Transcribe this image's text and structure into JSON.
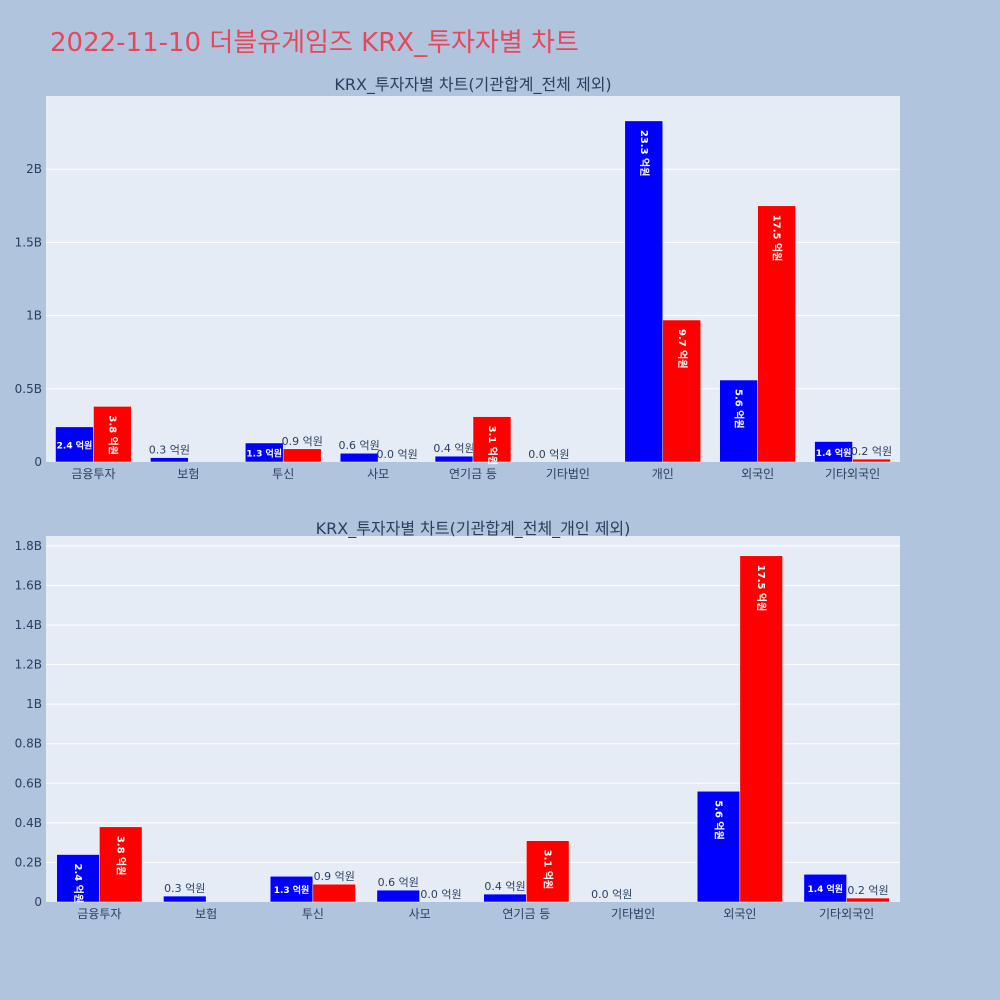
{
  "title": "2022-11-10 더블유게임즈 KRX_투자자별 차트",
  "colors": {
    "series1": "#0000ff",
    "series2": "#ff0000",
    "plot_bg": "#e5ecf6",
    "page_bg": "#b0c4de",
    "title": "#e8475a"
  },
  "chart_data": [
    {
      "type": "bar",
      "title": "KRX_투자자별 차트(기관합계_전체 제외)",
      "categories": [
        "금융투자",
        "보험",
        "투신",
        "사모",
        "연기금 등",
        "기타법인",
        "개인",
        "외국인",
        "기타외국인"
      ],
      "ylim": [
        0,
        2.5
      ],
      "yticks": [
        0,
        0.5,
        1,
        1.5,
        2
      ],
      "ytick_labels": [
        "0",
        "0.5B",
        "1B",
        "1.5B",
        "2B"
      ],
      "grid": true,
      "series": [
        {
          "values": [
            0.24,
            0.03,
            0.13,
            0.06,
            0.04,
            0.0,
            2.33,
            0.56,
            0.14
          ],
          "labels": [
            "2.4 억원",
            "0.3 억원",
            "1.3 억원",
            "0.6 억원",
            "0.4 억원",
            "0.0 억원",
            "23.3 억원",
            "5.6 억원",
            "1.4 억원"
          ]
        },
        {
          "values": [
            0.38,
            0.0,
            0.09,
            0.0,
            0.31,
            0.0,
            0.97,
            1.75,
            0.02
          ],
          "labels": [
            "3.8 억원",
            "",
            "0.9 억원",
            "0.0 억원",
            "3.1 억원",
            "",
            "9.7 억원",
            "17.5 억원",
            "0.2 억원"
          ]
        }
      ]
    },
    {
      "type": "bar",
      "title": "KRX_투자자별 차트(기관합계_전체_개인 제외)",
      "categories": [
        "금융투자",
        "보험",
        "투신",
        "사모",
        "연기금 등",
        "기타법인",
        "외국인",
        "기타외국인"
      ],
      "ylim": [
        0,
        1.85
      ],
      "yticks": [
        0,
        0.2,
        0.4,
        0.6,
        0.8,
        1,
        1.2,
        1.4,
        1.6,
        1.8
      ],
      "ytick_labels": [
        "0",
        "0.2B",
        "0.4B",
        "0.6B",
        "0.8B",
        "1B",
        "1.2B",
        "1.4B",
        "1.6B",
        "1.8B"
      ],
      "grid": true,
      "series": [
        {
          "values": [
            0.24,
            0.03,
            0.13,
            0.06,
            0.04,
            0.0,
            0.56,
            0.14
          ],
          "labels": [
            "2.4 억원",
            "0.3 억원",
            "1.3 억원",
            "0.6 억원",
            "0.4 억원",
            "0.0 억원",
            "5.6 억원",
            "1.4 억원"
          ]
        },
        {
          "values": [
            0.38,
            0.0,
            0.09,
            0.0,
            0.31,
            0.0,
            1.75,
            0.02
          ],
          "labels": [
            "3.8 억원",
            "",
            "0.9 억원",
            "0.0 억원",
            "3.1 억원",
            "",
            "17.5 억원",
            "0.2 억원"
          ]
        }
      ]
    }
  ]
}
